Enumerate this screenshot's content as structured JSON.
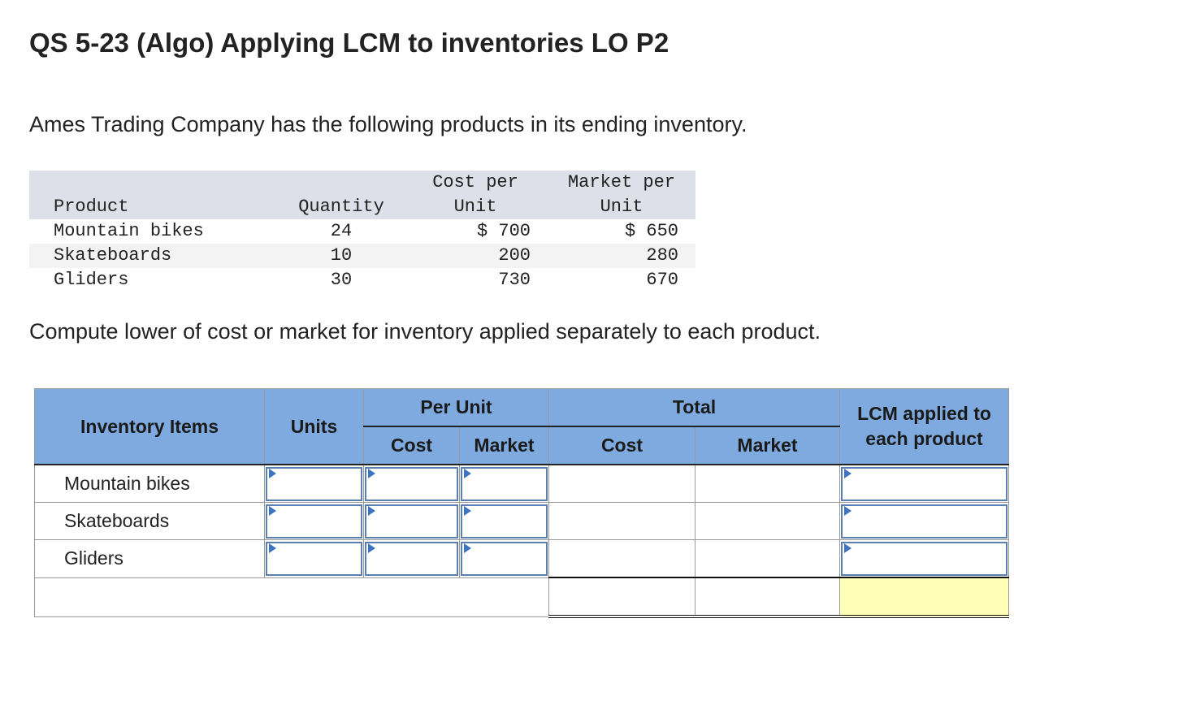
{
  "header": {
    "title": "QS 5-23 (Algo) Applying LCM to inventories LO P2"
  },
  "intro": "Ames Trading Company has the following products in its ending inventory.",
  "data_table": {
    "columns": [
      "Product",
      "Quantity",
      "Cost per Unit",
      "Market per Unit"
    ],
    "rows": [
      [
        "Mountain bikes",
        "24",
        "$ 700",
        "$ 650"
      ],
      [
        "Skateboards",
        "10",
        "200",
        "280"
      ],
      [
        "Gliders",
        "30",
        "730",
        "670"
      ]
    ]
  },
  "instruction": "Compute lower of cost or market for inventory applied separately to each product.",
  "answer_table": {
    "headers": {
      "items": "Inventory Items",
      "units": "Units",
      "per_unit": "Per Unit",
      "total": "Total",
      "cost": "Cost",
      "market": "Market",
      "lcm": "LCM applied to each product"
    },
    "rows": [
      "Mountain bikes",
      "Skateboards",
      "Gliders"
    ]
  }
}
